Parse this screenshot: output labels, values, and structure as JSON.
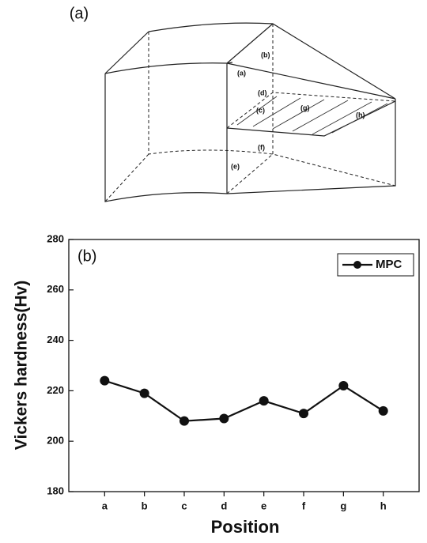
{
  "diagram": {
    "label": "(a)",
    "points": [
      "(a)",
      "(b)",
      "(c)",
      "(d)",
      "(e)",
      "(f)",
      "(g)",
      "(h)"
    ]
  },
  "chart_data": {
    "type": "line",
    "annotation": "(b)",
    "x_label": "Position",
    "y_label": "Vickers hardness(Hv)",
    "categories": [
      "a",
      "b",
      "c",
      "d",
      "e",
      "f",
      "g",
      "h"
    ],
    "series": [
      {
        "name": "MPC",
        "color": "#111111",
        "values": [
          224,
          219,
          208,
          209,
          216,
          211,
          222,
          212
        ]
      }
    ],
    "ylim": [
      180,
      280
    ],
    "yticks": [
      180,
      200,
      220,
      240,
      260,
      280
    ],
    "legend": "upper right",
    "grid": false
  }
}
